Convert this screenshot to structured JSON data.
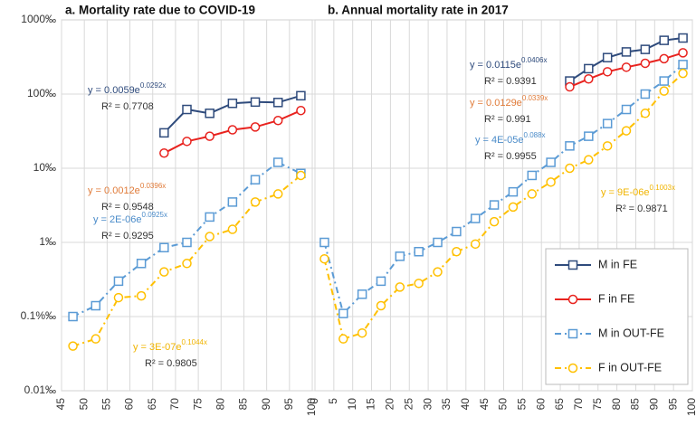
{
  "chart_data": [
    {
      "type": "line",
      "title": "a. Mortality rate due to COVID-19",
      "log_scale": true,
      "grid": true,
      "xlim": [
        45,
        100
      ],
      "xticks": [
        45,
        50,
        55,
        60,
        65,
        70,
        75,
        80,
        85,
        90,
        95,
        100
      ],
      "ylim": [
        0.01,
        1000
      ],
      "yticks": [
        {
          "value": 0.01,
          "label": "0.01‰"
        },
        {
          "value": 0.1,
          "label": "0.1%‰"
        },
        {
          "value": 1,
          "label": "1‰"
        },
        {
          "value": 10,
          "label": "10‰"
        },
        {
          "value": 100,
          "label": "100‰"
        },
        {
          "value": 1000,
          "label": "1000‰"
        }
      ],
      "series": [
        {
          "name": "M in FE",
          "color": "#2f4b7c",
          "x": [
            67.5,
            72.5,
            77.5,
            82.5,
            87.5,
            92.5,
            97.5
          ],
          "values": [
            30,
            62,
            55,
            75,
            78,
            77,
            95
          ]
        },
        {
          "name": "F in FE",
          "color": "#e8231f",
          "x": [
            67.5,
            72.5,
            77.5,
            82.5,
            87.5,
            92.5,
            97.5
          ],
          "values": [
            16,
            23,
            27,
            33,
            36,
            44,
            60
          ]
        },
        {
          "name": "M in OUT-FE",
          "color": "#5b9bd5",
          "x": [
            47.5,
            52.5,
            57.5,
            62.5,
            67.5,
            72.5,
            77.5,
            82.5,
            87.5,
            92.5,
            97.5
          ],
          "values": [
            0.1,
            0.14,
            0.3,
            0.52,
            0.85,
            1.0,
            2.2,
            3.5,
            7,
            12,
            8.5
          ]
        },
        {
          "name": "F in OUT-FE",
          "color": "#ffc000",
          "x": [
            47.5,
            52.5,
            57.5,
            62.5,
            67.5,
            72.5,
            77.5,
            82.5,
            87.5,
            92.5,
            97.5
          ],
          "values": [
            0.04,
            0.05,
            0.18,
            0.19,
            0.4,
            0.52,
            1.2,
            1.5,
            3.5,
            4.5,
            8
          ]
        }
      ],
      "annotations": [
        {
          "text": "y = 0.0059e",
          "exponent": "0.0292x",
          "r2": "R² = 0.7708",
          "color": "#2f4b7c"
        },
        {
          "text": "y = 0.0012e",
          "exponent": "0.0396x",
          "r2": "R² = 0.9548",
          "color": "#e07b39"
        },
        {
          "text": "y = 2E-06e",
          "exponent": "0.0925x",
          "r2": "R² = 0.9295",
          "color": "#4a8bc9"
        },
        {
          "text": "y = 3E-07e",
          "exponent": "0.1044x",
          "r2": "R² = 0.9805",
          "color": "#f0b400"
        }
      ]
    },
    {
      "type": "line",
      "title": "b. Annual mortality rate in 2017",
      "log_scale": true,
      "grid": true,
      "xlim": [
        0,
        100
      ],
      "xticks": [
        0,
        5,
        10,
        15,
        20,
        25,
        30,
        35,
        40,
        45,
        50,
        55,
        60,
        65,
        70,
        75,
        80,
        85,
        90,
        95,
        100
      ],
      "ylim": [
        0.01,
        1000
      ],
      "legend": "lower right",
      "series": [
        {
          "name": "M in FE",
          "color": "#2f4b7c",
          "x": [
            67.5,
            72.5,
            77.5,
            82.5,
            87.5,
            92.5,
            97.5
          ],
          "values": [
            150,
            220,
            310,
            370,
            400,
            530,
            570
          ]
        },
        {
          "name": "F in FE",
          "color": "#e8231f",
          "x": [
            67.5,
            72.5,
            77.5,
            82.5,
            87.5,
            92.5,
            97.5
          ],
          "values": [
            125,
            160,
            200,
            230,
            260,
            300,
            360
          ]
        },
        {
          "name": "M in OUT-FE",
          "color": "#5b9bd5",
          "x": [
            2.5,
            7.5,
            12.5,
            17.5,
            22.5,
            27.5,
            32.5,
            37.5,
            42.5,
            47.5,
            52.5,
            57.5,
            62.5,
            67.5,
            72.5,
            77.5,
            82.5,
            87.5,
            92.5,
            97.5
          ],
          "values": [
            1.0,
            0.11,
            0.2,
            0.3,
            0.65,
            0.75,
            1.0,
            1.4,
            2.1,
            3.2,
            4.8,
            8,
            12,
            20,
            27,
            40,
            62,
            100,
            150,
            250
          ]
        },
        {
          "name": "F in OUT-FE",
          "color": "#ffc000",
          "x": [
            2.5,
            7.5,
            12.5,
            17.5,
            22.5,
            27.5,
            32.5,
            37.5,
            42.5,
            47.5,
            52.5,
            57.5,
            62.5,
            67.5,
            72.5,
            77.5,
            82.5,
            87.5,
            92.5,
            97.5
          ],
          "values": [
            0.6,
            0.05,
            0.06,
            0.14,
            0.25,
            0.28,
            0.4,
            0.75,
            0.95,
            1.9,
            3,
            4.5,
            6.5,
            10,
            13,
            20,
            32,
            55,
            110,
            190
          ]
        }
      ],
      "annotations": [
        {
          "text": "y = 0.0115e",
          "exponent": "0.0406x",
          "r2": "R² = 0.9391",
          "color": "#2f4b7c"
        },
        {
          "text": "y = 0.0129e",
          "exponent": "0.0339x",
          "r2": "R² = 0.991",
          "color": "#e07b39"
        },
        {
          "text": "y = 4E-05e",
          "exponent": "0.088x",
          "r2": "R² = 0.9955",
          "color": "#4a8bc9"
        },
        {
          "text": "y = 9E-06e",
          "exponent": "0.1003x",
          "r2": "R² = 0.9871",
          "color": "#f0b400"
        }
      ]
    }
  ]
}
